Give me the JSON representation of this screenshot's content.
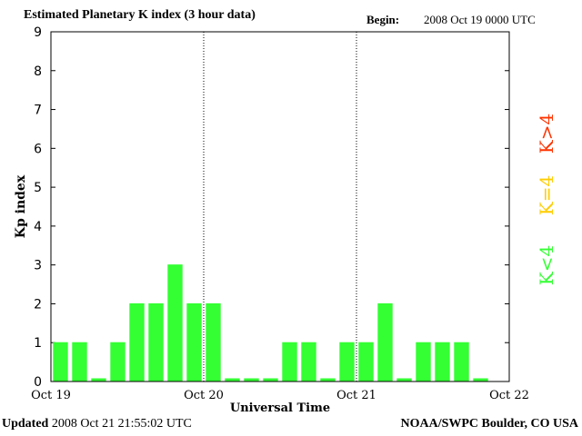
{
  "header": {
    "title": "Estimated Planetary K index (3 hour data)",
    "begin_label": "Begin:",
    "begin_value": "2008 Oct 19 0000 UTC"
  },
  "footer": {
    "updated_label": "Updated",
    "updated_value": "2008 Oct 21 21:55:02 UTC",
    "source": "NOAA/SWPC Boulder, CO USA"
  },
  "colors": {
    "k_below_4": "#33ff33",
    "k_equal_4": "#ffcc00",
    "k_above_4": "#ff3300",
    "axis": "#000000"
  },
  "legend": [
    {
      "label": "K<4",
      "color": "#33ff33"
    },
    {
      "label": "K=4",
      "color": "#ffcc00"
    },
    {
      "label": "K>4",
      "color": "#ff3300"
    }
  ],
  "chart_data": {
    "type": "bar",
    "title": "Estimated Planetary K index (3 hour data)",
    "xlabel": "Universal Time",
    "ylabel": "Kp index",
    "ylim": [
      0,
      9
    ],
    "yticks": [
      0,
      1,
      2,
      3,
      4,
      5,
      6,
      7,
      8,
      9
    ],
    "xticks": [
      "Oct 19",
      "Oct 20",
      "Oct 21",
      "Oct 22"
    ],
    "day_dividers": [
      "Oct 20",
      "Oct 21"
    ],
    "bars_per_day": 8,
    "values": [
      1,
      1,
      0,
      1,
      2,
      2,
      3,
      2,
      2,
      0,
      0,
      0,
      1,
      1,
      0,
      1,
      1,
      2,
      0,
      1,
      1,
      1,
      0
    ],
    "legend_position": "right, vertical"
  }
}
